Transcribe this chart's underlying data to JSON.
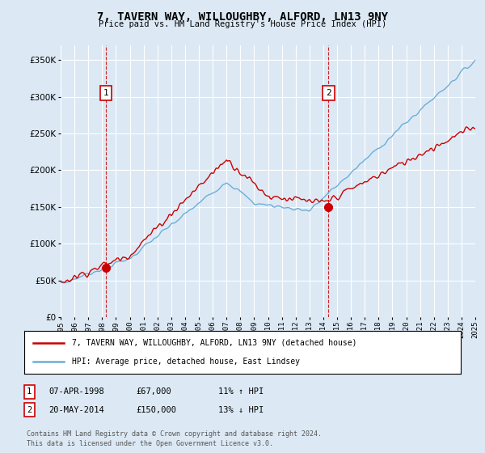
{
  "title": "7, TAVERN WAY, WILLOUGHBY, ALFORD, LN13 9NY",
  "subtitle": "Price paid vs. HM Land Registry's House Price Index (HPI)",
  "background_color": "#dce9f5",
  "plot_bg_color": "#dce9f5",
  "ylim": [
    0,
    370000
  ],
  "yticks": [
    0,
    50000,
    100000,
    150000,
    200000,
    250000,
    300000,
    350000
  ],
  "sale1_date": 1998.27,
  "sale1_price": 67000,
  "sale2_date": 2014.38,
  "sale2_price": 150000,
  "legend_line1": "7, TAVERN WAY, WILLOUGHBY, ALFORD, LN13 9NY (detached house)",
  "legend_line2": "HPI: Average price, detached house, East Lindsey",
  "red_color": "#cc0000",
  "blue_color": "#6baed6",
  "xstart": 1995,
  "xend": 2025
}
